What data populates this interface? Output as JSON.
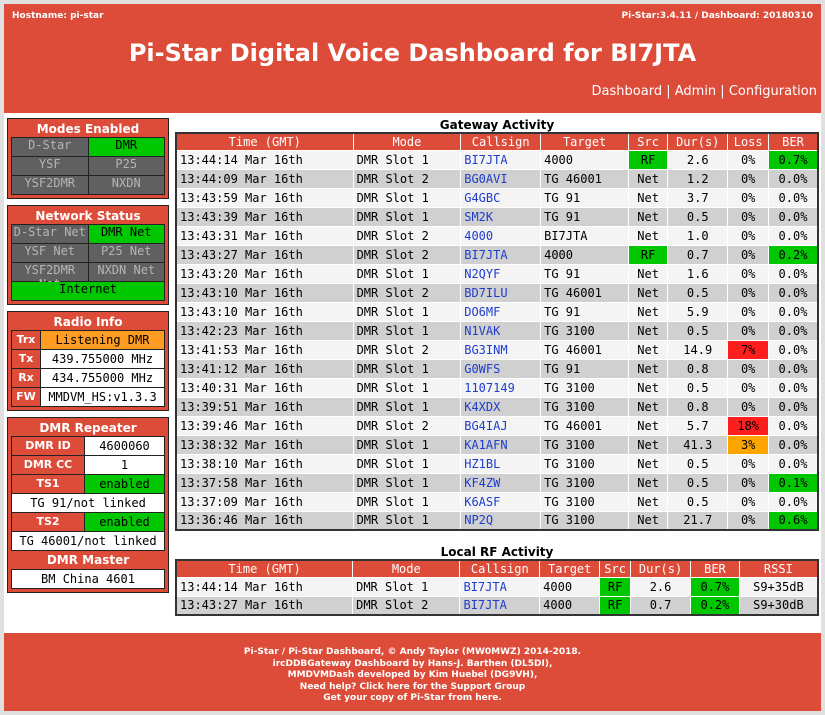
{
  "header": {
    "hostname": "Hostname: pi-star",
    "version": "Pi-Star:3.4.11 / Dashboard: 20180310",
    "title": "Pi-Star Digital Voice Dashboard for BI7JTA",
    "nav": [
      "Dashboard",
      "Admin",
      "Configuration"
    ],
    "nav_sep": " | "
  },
  "modes": {
    "title": "Modes Enabled",
    "items": [
      {
        "label": "D-Star",
        "state": "off"
      },
      {
        "label": "DMR",
        "state": "on"
      },
      {
        "label": "YSF",
        "state": "off"
      },
      {
        "label": "P25",
        "state": "off"
      },
      {
        "label": "YSF2DMR",
        "state": "off"
      },
      {
        "label": "NXDN",
        "state": "off"
      }
    ]
  },
  "network": {
    "title": "Network Status",
    "items": [
      {
        "label": "D-Star Net",
        "state": "off"
      },
      {
        "label": "DMR Net",
        "state": "on"
      },
      {
        "label": "YSF Net",
        "state": "off"
      },
      {
        "label": "P25 Net",
        "state": "off"
      },
      {
        "label": "YSF2DMR Net",
        "state": "off"
      },
      {
        "label": "NXDN Net",
        "state": "off"
      }
    ],
    "internet": "Internet"
  },
  "radio": {
    "title": "Radio Info",
    "trx_label": "Trx",
    "trx": "Listening DMR",
    "tx_label": "Tx",
    "tx": "439.755000 MHz",
    "rx_label": "Rx",
    "rx": "434.755000 MHz",
    "fw_label": "FW",
    "fw": "MMDVM_HS:v1.3.3"
  },
  "dmr": {
    "title": "DMR Repeater",
    "id_label": "DMR ID",
    "id": "4600060",
    "cc_label": "DMR CC",
    "cc": "1",
    "ts1_label": "TS1",
    "ts1": "enabled",
    "ts1_tg": "TG 91/not linked",
    "ts2_label": "TS2",
    "ts2": "enabled",
    "ts2_tg": "TG 46001/not linked",
    "master_title": "DMR Master",
    "master": "BM China 4601"
  },
  "gateway": {
    "title": "Gateway Activity",
    "columns": [
      "Time (GMT)",
      "Mode",
      "Callsign",
      "Target",
      "Src",
      "Dur(s)",
      "Loss",
      "BER"
    ],
    "rows": [
      {
        "time": "13:44:14 Mar 16th",
        "mode": "DMR Slot 1",
        "call": "BI7JTA",
        "target": "4000",
        "src": "RF",
        "dur": "2.6",
        "loss": "0%",
        "ber": "0.7%",
        "src_hl": "green",
        "loss_hl": "",
        "ber_hl": "green"
      },
      {
        "time": "13:44:09 Mar 16th",
        "mode": "DMR Slot 2",
        "call": "BG0AVI",
        "target": "TG 46001",
        "src": "Net",
        "dur": "1.2",
        "loss": "0%",
        "ber": "0.0%",
        "src_hl": "",
        "loss_hl": "",
        "ber_hl": ""
      },
      {
        "time": "13:43:59 Mar 16th",
        "mode": "DMR Slot 1",
        "call": "G4GBC",
        "target": "TG 91",
        "src": "Net",
        "dur": "3.7",
        "loss": "0%",
        "ber": "0.0%",
        "src_hl": "",
        "loss_hl": "",
        "ber_hl": ""
      },
      {
        "time": "13:43:39 Mar 16th",
        "mode": "DMR Slot 1",
        "call": "SM2K",
        "target": "TG 91",
        "src": "Net",
        "dur": "0.5",
        "loss": "0%",
        "ber": "0.0%",
        "src_hl": "",
        "loss_hl": "",
        "ber_hl": ""
      },
      {
        "time": "13:43:31 Mar 16th",
        "mode": "DMR Slot 2",
        "call": "4000",
        "target": "BI7JTA",
        "src": "Net",
        "dur": "1.0",
        "loss": "0%",
        "ber": "0.0%",
        "src_hl": "",
        "loss_hl": "",
        "ber_hl": ""
      },
      {
        "time": "13:43:27 Mar 16th",
        "mode": "DMR Slot 2",
        "call": "BI7JTA",
        "target": "4000",
        "src": "RF",
        "dur": "0.7",
        "loss": "0%",
        "ber": "0.2%",
        "src_hl": "green",
        "loss_hl": "",
        "ber_hl": "green"
      },
      {
        "time": "13:43:20 Mar 16th",
        "mode": "DMR Slot 1",
        "call": "N2QYF",
        "target": "TG 91",
        "src": "Net",
        "dur": "1.6",
        "loss": "0%",
        "ber": "0.0%",
        "src_hl": "",
        "loss_hl": "",
        "ber_hl": ""
      },
      {
        "time": "13:43:10 Mar 16th",
        "mode": "DMR Slot 2",
        "call": "BD7ILU",
        "target": "TG 46001",
        "src": "Net",
        "dur": "0.5",
        "loss": "0%",
        "ber": "0.0%",
        "src_hl": "",
        "loss_hl": "",
        "ber_hl": ""
      },
      {
        "time": "13:43:10 Mar 16th",
        "mode": "DMR Slot 1",
        "call": "DO6MF",
        "target": "TG 91",
        "src": "Net",
        "dur": "5.9",
        "loss": "0%",
        "ber": "0.0%",
        "src_hl": "",
        "loss_hl": "",
        "ber_hl": ""
      },
      {
        "time": "13:42:23 Mar 16th",
        "mode": "DMR Slot 1",
        "call": "N1VAK",
        "target": "TG 3100",
        "src": "Net",
        "dur": "0.5",
        "loss": "0%",
        "ber": "0.0%",
        "src_hl": "",
        "loss_hl": "",
        "ber_hl": ""
      },
      {
        "time": "13:41:53 Mar 16th",
        "mode": "DMR Slot 2",
        "call": "BG3INM",
        "target": "TG 46001",
        "src": "Net",
        "dur": "14.9",
        "loss": "7%",
        "ber": "0.0%",
        "src_hl": "",
        "loss_hl": "red",
        "ber_hl": ""
      },
      {
        "time": "13:41:12 Mar 16th",
        "mode": "DMR Slot 1",
        "call": "G0WFS",
        "target": "TG 91",
        "src": "Net",
        "dur": "0.8",
        "loss": "0%",
        "ber": "0.0%",
        "src_hl": "",
        "loss_hl": "",
        "ber_hl": ""
      },
      {
        "time": "13:40:31 Mar 16th",
        "mode": "DMR Slot 1",
        "call": "1107149",
        "target": "TG 3100",
        "src": "Net",
        "dur": "0.5",
        "loss": "0%",
        "ber": "0.0%",
        "src_hl": "",
        "loss_hl": "",
        "ber_hl": ""
      },
      {
        "time": "13:39:51 Mar 16th",
        "mode": "DMR Slot 1",
        "call": "K4XDX",
        "target": "TG 3100",
        "src": "Net",
        "dur": "0.8",
        "loss": "0%",
        "ber": "0.0%",
        "src_hl": "",
        "loss_hl": "",
        "ber_hl": ""
      },
      {
        "time": "13:39:46 Mar 16th",
        "mode": "DMR Slot 2",
        "call": "BG4IAJ",
        "target": "TG 46001",
        "src": "Net",
        "dur": "5.7",
        "loss": "18%",
        "ber": "0.0%",
        "src_hl": "",
        "loss_hl": "red",
        "ber_hl": ""
      },
      {
        "time": "13:38:32 Mar 16th",
        "mode": "DMR Slot 1",
        "call": "KA1AFN",
        "target": "TG 3100",
        "src": "Net",
        "dur": "41.3",
        "loss": "3%",
        "ber": "0.0%",
        "src_hl": "",
        "loss_hl": "orange",
        "ber_hl": ""
      },
      {
        "time": "13:38:10 Mar 16th",
        "mode": "DMR Slot 1",
        "call": "HZ1BL",
        "target": "TG 3100",
        "src": "Net",
        "dur": "0.5",
        "loss": "0%",
        "ber": "0.0%",
        "src_hl": "",
        "loss_hl": "",
        "ber_hl": ""
      },
      {
        "time": "13:37:58 Mar 16th",
        "mode": "DMR Slot 1",
        "call": "KF4ZW",
        "target": "TG 3100",
        "src": "Net",
        "dur": "0.5",
        "loss": "0%",
        "ber": "0.1%",
        "src_hl": "",
        "loss_hl": "",
        "ber_hl": "green"
      },
      {
        "time": "13:37:09 Mar 16th",
        "mode": "DMR Slot 1",
        "call": "K6ASF",
        "target": "TG 3100",
        "src": "Net",
        "dur": "0.5",
        "loss": "0%",
        "ber": "0.0%",
        "src_hl": "",
        "loss_hl": "",
        "ber_hl": ""
      },
      {
        "time": "13:36:46 Mar 16th",
        "mode": "DMR Slot 1",
        "call": "NP2Q",
        "target": "TG 3100",
        "src": "Net",
        "dur": "21.7",
        "loss": "0%",
        "ber": "0.6%",
        "src_hl": "",
        "loss_hl": "",
        "ber_hl": "green"
      }
    ]
  },
  "local": {
    "title": "Local RF Activity",
    "columns": [
      "Time (GMT)",
      "Mode",
      "Callsign",
      "Target",
      "Src",
      "Dur(s)",
      "BER",
      "RSSI"
    ],
    "rows": [
      {
        "time": "13:44:14 Mar 16th",
        "mode": "DMR Slot 1",
        "call": "BI7JTA",
        "target": "4000",
        "src": "RF",
        "dur": "2.6",
        "ber": "0.7%",
        "rssi": "S9+35dB"
      },
      {
        "time": "13:43:27 Mar 16th",
        "mode": "DMR Slot 2",
        "call": "BI7JTA",
        "target": "4000",
        "src": "RF",
        "dur": "0.7",
        "ber": "0.2%",
        "rssi": "S9+30dB"
      }
    ]
  },
  "footer": {
    "lines": [
      "Pi-Star / Pi-Star Dashboard, © Andy Taylor (MW0MWZ) 2014-2018.",
      "ircDDBGateway Dashboard by Hans-J. Barthen (DL5DI),",
      "MMDVMDash developed by Kim Huebel (DG9VH),",
      "Need help? Click here for the Support Group",
      "Get your copy of Pi-Star from here."
    ]
  },
  "colors": {
    "brand": "#dd4b39",
    "on": "#00c700",
    "off": "#606060",
    "link": "#1e3ccd",
    "warn": "#ffa500",
    "alert": "#ff1e1e"
  }
}
